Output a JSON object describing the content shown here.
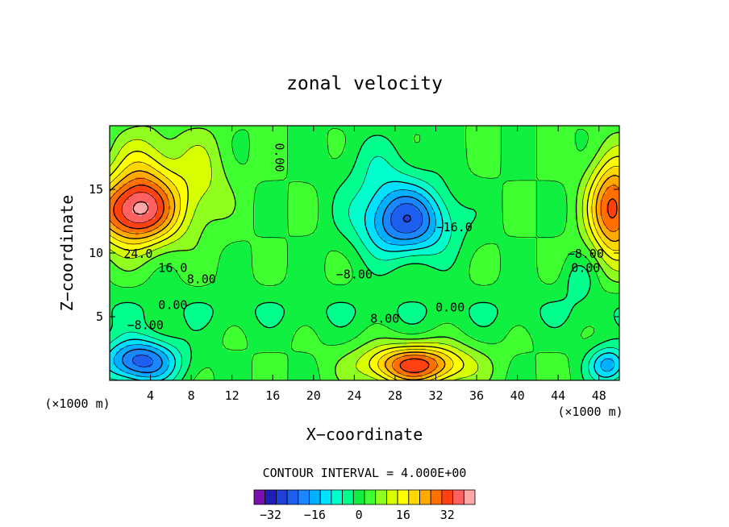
{
  "chart_data": {
    "type": "heatmap",
    "title": "zonal velocity",
    "xlabel": "X−coordinate",
    "ylabel": "Z−coordinate",
    "x_unit_left": "(×1000 m)",
    "x_unit_right": "(×1000 m)",
    "xlim": [
      0,
      50
    ],
    "ylim": [
      0,
      20
    ],
    "x_ticks": [
      4,
      8,
      12,
      16,
      20,
      24,
      28,
      32,
      36,
      40,
      44,
      48
    ],
    "y_ticks": [
      5,
      10,
      15
    ],
    "contour_interval_text": "CONTOUR INTERVAL = 4.000E+00",
    "colorbar": {
      "levels": [
        -36,
        -32,
        -28,
        -24,
        -20,
        -16,
        -12,
        -8,
        -4,
        0,
        4,
        8,
        12,
        16,
        20,
        24,
        28,
        32,
        36,
        40
      ],
      "tick_values": [
        -32,
        -16,
        0,
        16,
        32
      ],
      "tick_labels": [
        "−32",
        "−16",
        "0",
        "16",
        "32"
      ],
      "colors": [
        "#7a10b0",
        "#1f1fb8",
        "#1f3fd8",
        "#1f5ff0",
        "#1a86ff",
        "#00b0ff",
        "#00e0ff",
        "#00ffcc",
        "#00ff8c",
        "#10f040",
        "#40ff30",
        "#90ff20",
        "#d8ff00",
        "#ffff00",
        "#ffd800",
        "#ffaa00",
        "#ff7000",
        "#ff4010",
        "#ff6060",
        "#ffa8a8"
      ]
    },
    "centers": [
      {
        "x": 2.5,
        "z": 13.3,
        "value": 36,
        "sx": 4.2,
        "sz": 2.8
      },
      {
        "x": 3.5,
        "z": 17.0,
        "value": 10,
        "sx": 3.0,
        "sz": 3.0
      },
      {
        "x": 29.0,
        "z": 12.5,
        "value": -26,
        "sx": 4.5,
        "sz": 2.8
      },
      {
        "x": 26.5,
        "z": 16.5,
        "value": -6,
        "sx": 4.0,
        "sz": 3.0
      },
      {
        "x": 30.0,
        "z": 1.2,
        "value": 30,
        "sx": 5.0,
        "sz": 1.6
      },
      {
        "x": 3.0,
        "z": 1.5,
        "value": -26,
        "sx": 3.8,
        "sz": 1.8
      },
      {
        "x": 46.0,
        "z": 8.0,
        "value": -6,
        "sx": 1.6,
        "sz": 1.6
      },
      {
        "x": 49.5,
        "z": 13.5,
        "value": 30,
        "sx": 2.5,
        "sz": 4.0
      },
      {
        "x": 49.0,
        "z": 1.2,
        "value": -18,
        "sx": 2.0,
        "sz": 1.5
      },
      {
        "x": 9.0,
        "z": 16.0,
        "value": 8,
        "sx": 3.0,
        "sz": 4.0
      }
    ],
    "contour_labels": [
      {
        "text": "24.0",
        "x": 2.8,
        "z": 9.9
      },
      {
        "text": "16.0",
        "x": 6.2,
        "z": 8.8
      },
      {
        "text": "8.00",
        "x": 9.0,
        "z": 7.9
      },
      {
        "text": "0.00",
        "x": 6.2,
        "z": 5.9
      },
      {
        "text": "−8.00",
        "x": 3.5,
        "z": 4.3
      },
      {
        "text": "0.00",
        "x": 16.6,
        "z": 17.5,
        "rotate": 90
      },
      {
        "text": "−8.00",
        "x": 24.0,
        "z": 8.3
      },
      {
        "text": "−16.0",
        "x": 33.8,
        "z": 12.0
      },
      {
        "text": "8.00",
        "x": 27.0,
        "z": 4.8
      },
      {
        "text": "0.00",
        "x": 33.4,
        "z": 5.7
      },
      {
        "text": "−8.00",
        "x": 46.7,
        "z": 9.9
      },
      {
        "text": "0.00",
        "x": 46.7,
        "z": 8.8
      }
    ]
  }
}
